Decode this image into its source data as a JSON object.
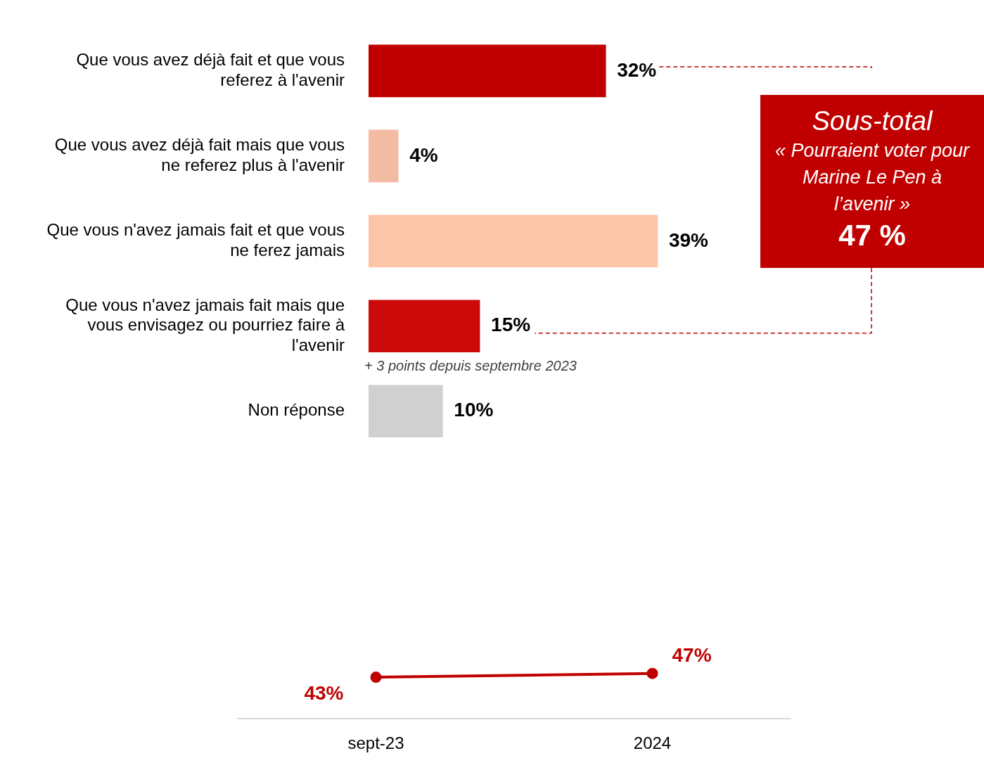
{
  "chart_data": [
    {
      "type": "bar",
      "orientation": "horizontal",
      "categories": [
        "Que vous avez déjà fait et que vous referez à l'avenir",
        "Que vous avez déjà fait mais que vous ne referez plus à l'avenir",
        "Que vous n'avez jamais fait et que vous ne ferez jamais",
        "Que vous n'avez jamais fait mais que vous envisagez ou pourriez faire à l'avenir",
        "Non réponse"
      ],
      "values": [
        32,
        4,
        39,
        15,
        10
      ],
      "colors": [
        "#c00000",
        "#f2bca4",
        "#fdc5a8",
        "#cc0a0a",
        "#d0d0d0"
      ],
      "value_labels": [
        "32%",
        "4%",
        "39%",
        "15%",
        "10%"
      ],
      "grid": false,
      "legend": false,
      "annotations": [
        "+ 3 points depuis septembre 2023",
        "Sous-total",
        "«  Pourraient voter pour Marine Le Pen à l’avenir »",
        "47 %"
      ]
    },
    {
      "type": "line",
      "categories": [
        "sept-23",
        "2024"
      ],
      "values": [
        43,
        47
      ],
      "color": "#c00000",
      "marker": "circle",
      "value_labels": [
        "43%",
        "47%"
      ],
      "grid": false,
      "legend": false
    }
  ]
}
